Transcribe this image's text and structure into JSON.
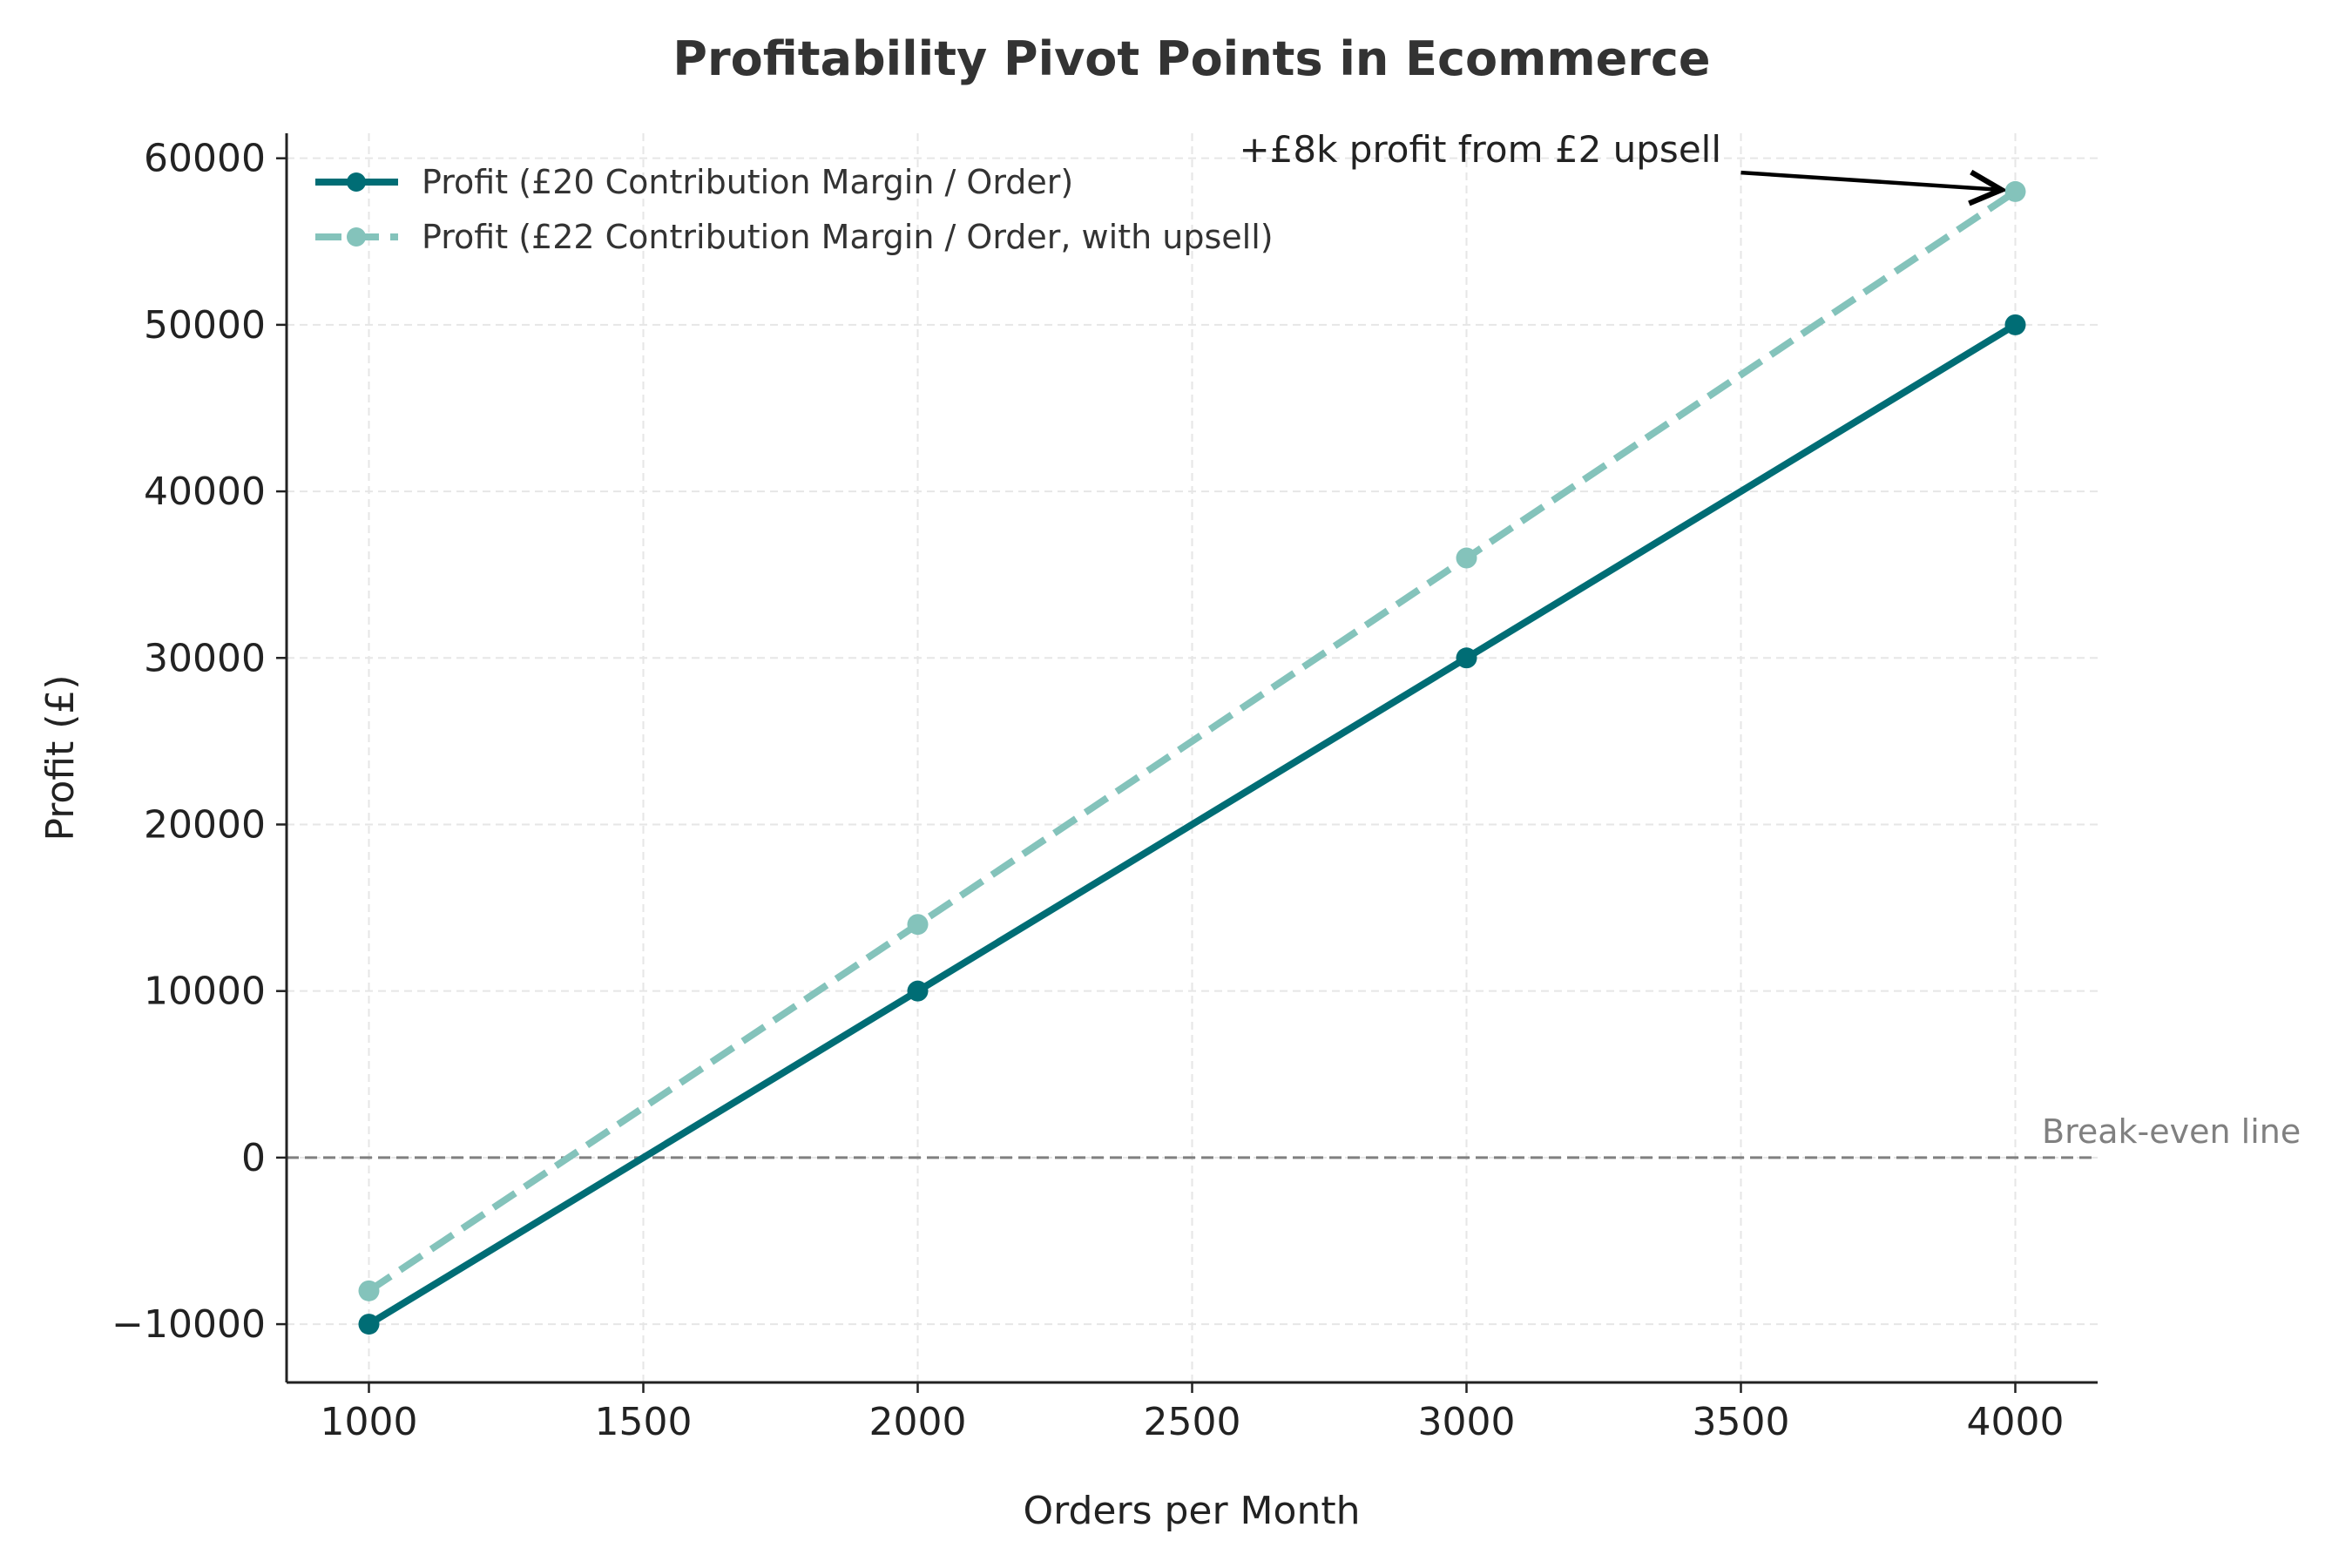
{
  "chart_data": {
    "type": "line",
    "title": "Profitability Pivot Points in Ecommerce",
    "xlabel": "Orders per Month",
    "ylabel": "Profit (£)",
    "x": [
      1000,
      2000,
      3000,
      4000
    ],
    "xlim": [
      850,
      4150
    ],
    "ylim": [
      -13500,
      61500
    ],
    "xticks": [
      1000,
      1500,
      2000,
      2500,
      3000,
      3500,
      4000
    ],
    "yticks": [
      -10000,
      0,
      10000,
      20000,
      30000,
      40000,
      50000,
      60000
    ],
    "xtick_labels": [
      "1000",
      "1500",
      "2000",
      "2500",
      "3000",
      "3500",
      "4000"
    ],
    "ytick_labels": [
      "−10000",
      "0",
      "10000",
      "20000",
      "30000",
      "40000",
      "50000",
      "60000"
    ],
    "grid": true,
    "legend_position": "top-left",
    "series": [
      {
        "name": "Profit (£20 Contribution Margin / Order)",
        "values": [
          -10000,
          10000,
          30000,
          50000
        ],
        "color": "#006d75",
        "style": "solid",
        "marker": "circle"
      },
      {
        "name": "Profit (£22 Contribution Margin / Order, with upsell)",
        "values": [
          -8000,
          14000,
          36000,
          58000
        ],
        "color": "#84c3bb",
        "style": "dashed",
        "marker": "circle"
      }
    ],
    "reference_lines": [
      {
        "axis": "y",
        "value": 0,
        "label": "Break-even line",
        "color": "#808080",
        "style": "dashed"
      }
    ],
    "annotations": [
      {
        "text": "+£8k profit from £2 upsell",
        "text_x": 3500,
        "text_y": 60500,
        "arrow_to_x": 4000,
        "arrow_to_y": 58000
      }
    ]
  }
}
